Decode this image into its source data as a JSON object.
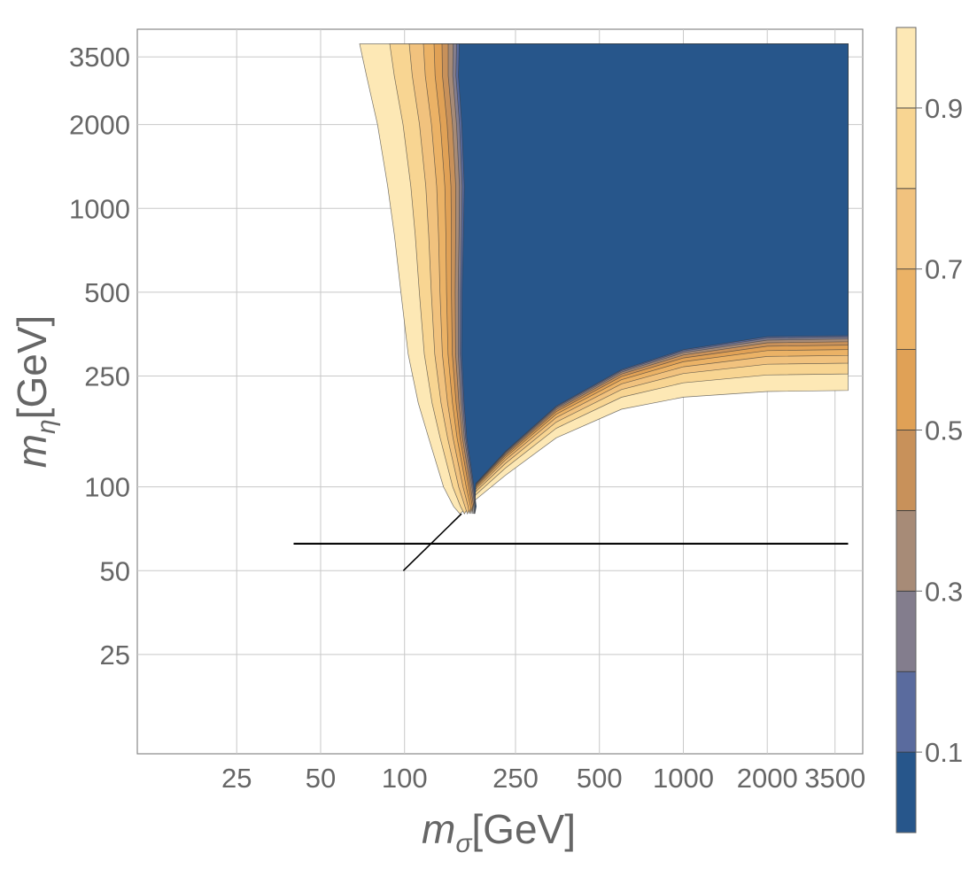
{
  "chart_data": {
    "type": "contour",
    "x_scale": "log",
    "y_scale": "log",
    "xlabel": {
      "var": "m",
      "sub": "σ",
      "unit": "[GeV]"
    },
    "ylabel": {
      "var": "m",
      "sub": "η",
      "unit": "[GeV]"
    },
    "xlim": [
      11,
      4400
    ],
    "ylim": [
      11,
      4400
    ],
    "x_ticks": [
      25,
      50,
      100,
      250,
      500,
      1000,
      2000,
      3500
    ],
    "x_tick_labels": [
      "25",
      "50",
      "100",
      "250",
      "500",
      "1000",
      "2000",
      "3500"
    ],
    "y_ticks": [
      25,
      50,
      100,
      250,
      500,
      1000,
      2000,
      3500
    ],
    "y_tick_labels": [
      "25",
      "50",
      "100",
      "250",
      "500",
      "1000",
      "2000",
      "3500"
    ],
    "grid": true,
    "colorbar": {
      "range": [
        0,
        1
      ],
      "levels": [
        0,
        0.1,
        0.2,
        0.3,
        0.4,
        0.5,
        0.6,
        0.7,
        0.8,
        0.9,
        1.0
      ],
      "colors": [
        "#27568b",
        "#5a6b9e",
        "#837d8d",
        "#a78b77",
        "#c8915a",
        "#e0a156",
        "#ebb266",
        "#f1c27e",
        "#f8d592",
        "#fde8b5"
      ],
      "tick_values": [
        0.1,
        0.3,
        0.5,
        0.7,
        0.9
      ],
      "tick_labels": [
        "0.1",
        "0.3",
        "0.5",
        "0.7",
        "0.9"
      ]
    },
    "region": {
      "description_of_boundaries": "upper-left edge and lower-right edge, in data units",
      "upper_left_edge": [
        [
          69,
          3900
        ],
        [
          73,
          3000
        ],
        [
          80,
          2000
        ],
        [
          87,
          1200
        ],
        [
          92,
          800
        ],
        [
          97,
          500
        ],
        [
          103,
          300
        ],
        [
          112,
          200
        ],
        [
          122,
          150
        ],
        [
          138,
          100
        ],
        [
          150,
          85
        ],
        [
          158,
          80
        ]
      ],
      "lower_right_edge": [
        [
          158,
          80
        ],
        [
          180,
          90
        ],
        [
          230,
          110
        ],
        [
          350,
          150
        ],
        [
          600,
          190
        ],
        [
          1000,
          210
        ],
        [
          2000,
          220
        ],
        [
          3900,
          222
        ]
      ],
      "x_max": 3900,
      "y_max": 3900
    },
    "line_overlay": {
      "horizontal": {
        "y": 62.5,
        "x_from": 40,
        "x_to": 3900
      },
      "diagonal": {
        "x_from": 99,
        "y_from": 50,
        "x_to": 160,
        "y_to": 80
      }
    }
  }
}
